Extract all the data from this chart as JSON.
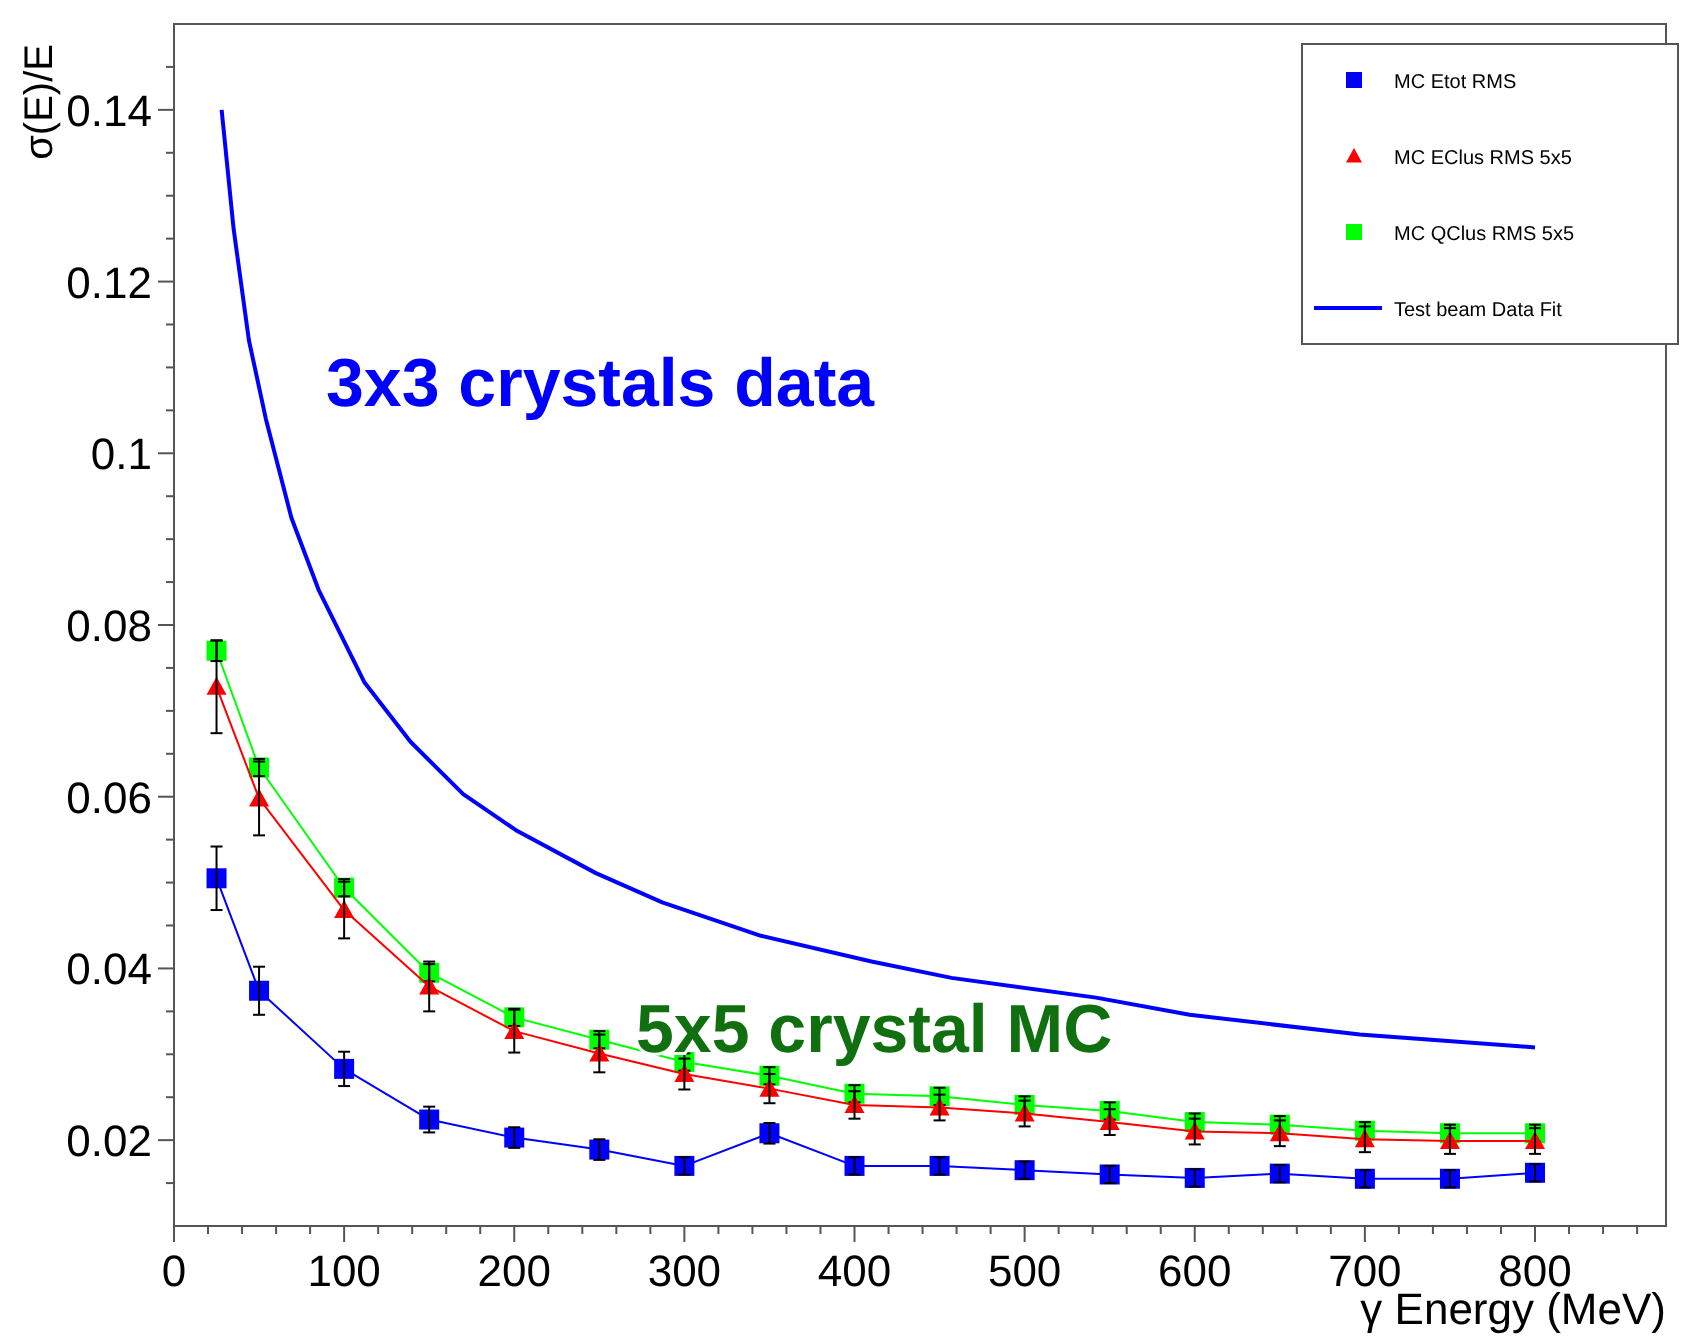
{
  "chart_data": {
    "type": "line",
    "xlabel": "γ Energy (MeV)",
    "ylabel": "σ(E)/E",
    "xlim": [
      0,
      877
    ],
    "ylim": [
      0.01,
      0.15
    ],
    "xticks": [
      0,
      {
        "value": 20,
        "label": null
      },
      {
        "value": 40,
        "label": null
      },
      {
        "value": 60,
        "label": null
      },
      {
        "value": 80,
        "label": null
      },
      100,
      {
        "value": 120,
        "label": null
      },
      {
        "value": 140,
        "label": null
      },
      {
        "value": 160,
        "label": null
      },
      {
        "value": 180,
        "label": null
      },
      200,
      {
        "value": 220,
        "label": null
      },
      {
        "value": 240,
        "label": null
      },
      {
        "value": 260,
        "label": null
      },
      {
        "value": 280,
        "label": null
      },
      300,
      {
        "value": 320,
        "label": null
      },
      {
        "value": 340,
        "label": null
      },
      {
        "value": 360,
        "label": null
      },
      {
        "value": 380,
        "label": null
      },
      400,
      {
        "value": 420,
        "label": null
      },
      {
        "value": 440,
        "label": null
      },
      {
        "value": 460,
        "label": null
      },
      {
        "value": 480,
        "label": null
      },
      500,
      {
        "value": 520,
        "label": null
      },
      {
        "value": 540,
        "label": null
      },
      {
        "value": 560,
        "label": null
      },
      {
        "value": 580,
        "label": null
      },
      600,
      {
        "value": 620,
        "label": null
      },
      {
        "value": 640,
        "label": null
      },
      {
        "value": 660,
        "label": null
      },
      {
        "value": 680,
        "label": null
      },
      700,
      {
        "value": 720,
        "label": null
      },
      {
        "value": 740,
        "label": null
      },
      {
        "value": 760,
        "label": null
      },
      {
        "value": 780,
        "label": null
      },
      800,
      {
        "value": 820,
        "label": null
      },
      {
        "value": 840,
        "label": null
      },
      {
        "value": 860,
        "label": null
      }
    ],
    "yticks": [
      {
        "value": 0.015,
        "label": null
      },
      0.02,
      {
        "value": 0.025,
        "label": null
      },
      {
        "value": 0.03,
        "label": null
      },
      {
        "value": 0.035,
        "label": null
      },
      0.04,
      {
        "value": 0.045,
        "label": null
      },
      {
        "value": 0.05,
        "label": null
      },
      {
        "value": 0.055,
        "label": null
      },
      0.06,
      {
        "value": 0.065,
        "label": null
      },
      {
        "value": 0.07,
        "label": null
      },
      {
        "value": 0.075,
        "label": null
      },
      0.08,
      {
        "value": 0.085,
        "label": null
      },
      {
        "value": 0.09,
        "label": null
      },
      {
        "value": 0.095,
        "label": null
      },
      0.1,
      {
        "value": 0.105,
        "label": null
      },
      {
        "value": 0.11,
        "label": null
      },
      {
        "value": 0.115,
        "label": null
      },
      0.12,
      {
        "value": 0.125,
        "label": null
      },
      {
        "value": 0.13,
        "label": null
      },
      {
        "value": 0.135,
        "label": null
      },
      0.14,
      {
        "value": 0.145,
        "label": null
      }
    ],
    "grid": false,
    "legend": "top right",
    "x": [
      25,
      50,
      100,
      150,
      200,
      250,
      300,
      350,
      400,
      450,
      500,
      550,
      600,
      650,
      700,
      750,
      800
    ],
    "series": [
      {
        "name": "MC Etot RMS",
        "color": "#0000ff",
        "marker": "square",
        "values": [
          0.0505,
          0.0374,
          0.0283,
          0.0224,
          0.0203,
          0.0189,
          0.017,
          0.0208,
          0.017,
          0.017,
          0.0165,
          0.016,
          0.0156,
          0.0161,
          0.0155,
          0.0155,
          0.0162
        ],
        "errors": [
          0.0037,
          0.0028,
          0.002,
          0.0015,
          0.0012,
          0.0012,
          0.001,
          0.0012,
          0.001,
          0.001,
          0.001,
          0.001,
          0.001,
          0.001,
          0.001,
          0.001,
          0.001
        ]
      },
      {
        "name": "MC EClus RMS 5x5",
        "color": "#ff0000",
        "marker": "triangle",
        "values": [
          0.0728,
          0.0598,
          0.0468,
          0.0379,
          0.0327,
          0.0301,
          0.0277,
          0.026,
          0.0241,
          0.0238,
          0.0231,
          0.0221,
          0.021,
          0.0208,
          0.0201,
          0.0199,
          0.0199
        ],
        "errors": [
          0.0054,
          0.0043,
          0.0033,
          0.0029,
          0.0025,
          0.0022,
          0.0018,
          0.0017,
          0.0016,
          0.0015,
          0.0015,
          0.0015,
          0.0015,
          0.0015,
          0.0015,
          0.0015,
          0.0015
        ]
      },
      {
        "name": "MC QClus RMS 5x5",
        "color": "#00ff00",
        "marker": "square",
        "values": [
          0.077,
          0.0634,
          0.0494,
          0.0395,
          0.0343,
          0.0317,
          0.0291,
          0.0275,
          0.0254,
          0.0251,
          0.0241,
          0.0234,
          0.0221,
          0.0218,
          0.0211,
          0.0208,
          0.0208
        ],
        "errors": [
          0.0012,
          0.001,
          0.001,
          0.001,
          0.001,
          0.001,
          0.001,
          0.001,
          0.001,
          0.001,
          0.001,
          0.001,
          0.001,
          0.001,
          0.001,
          0.001,
          0.001
        ]
      },
      {
        "name": "Test beam Data Fit",
        "color": "#0000ff",
        "marker": "none",
        "x": [
          28,
          35,
          44,
          54,
          69,
          85,
          112,
          139,
          170,
          201,
          248,
          287,
          345,
          410,
          457,
          542,
          597,
          697,
          800
        ],
        "values": [
          0.14,
          0.1262,
          0.1132,
          0.104,
          0.0925,
          0.0841,
          0.0733,
          0.0664,
          0.0603,
          0.0561,
          0.0511,
          0.0477,
          0.0438,
          0.0408,
          0.0389,
          0.0366,
          0.0346,
          0.0323,
          0.0308
        ]
      }
    ],
    "annotations": [
      "3x3 crystals data",
      "5x5 crystal MC"
    ]
  }
}
